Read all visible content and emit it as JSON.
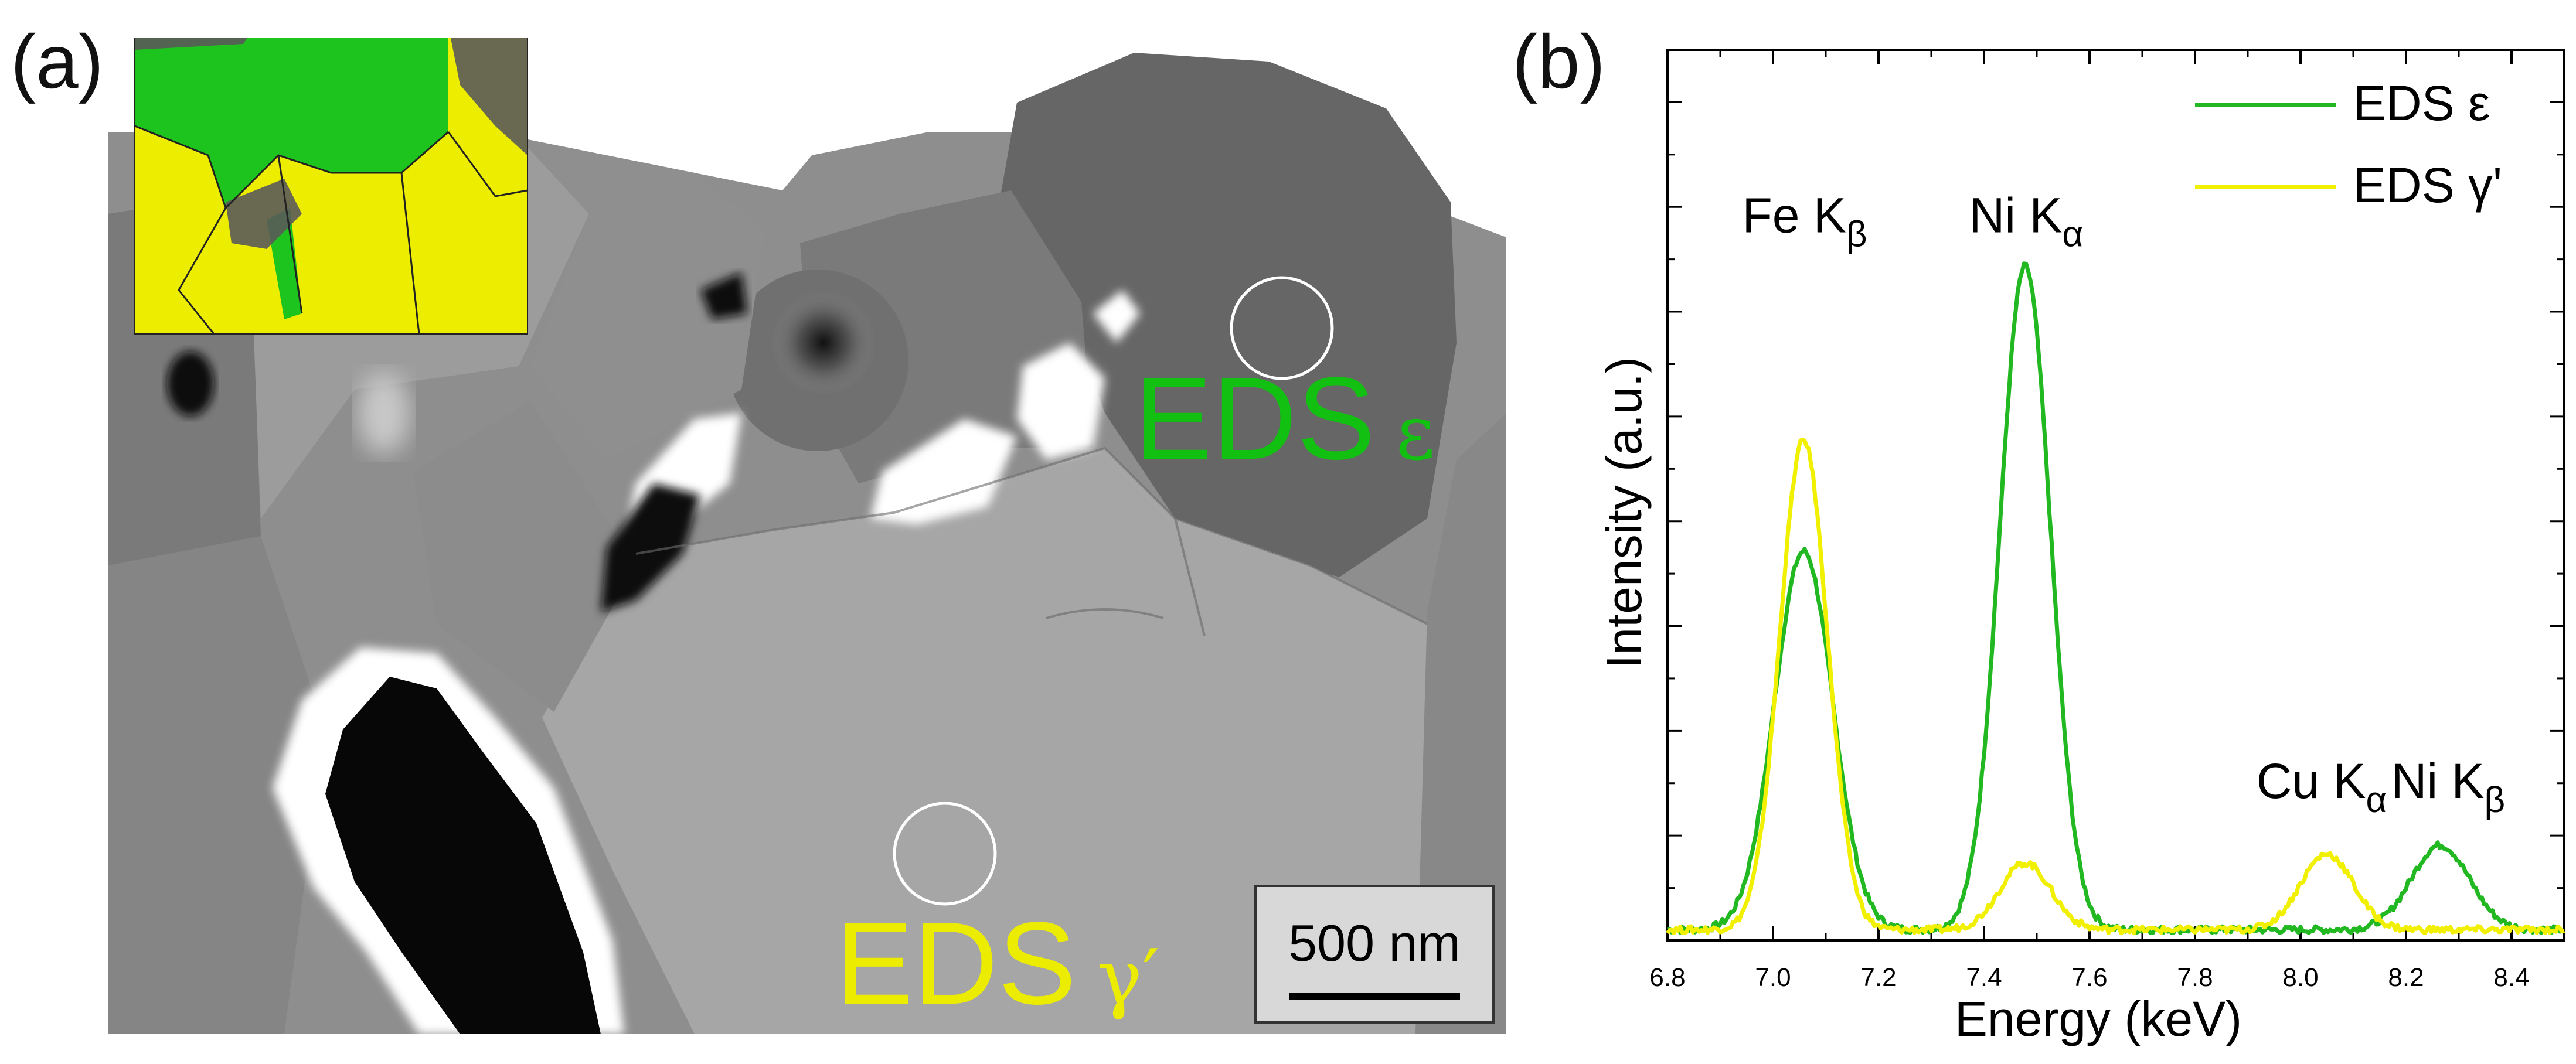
{
  "panel_a": {
    "label": "(a)",
    "annotation_eps": {
      "prefix": "EDS",
      "symbol": "ε",
      "color": "#11c011"
    },
    "annotation_gamma": {
      "prefix": "EDS",
      "symbol": "γ′",
      "color": "#ecec00"
    },
    "scale_bar": "500 nm",
    "inset_colors": {
      "eps": "#1dc41d",
      "gamma": "#eded00"
    }
  },
  "panel_b": {
    "label": "(b)",
    "chart_data": {
      "type": "line",
      "title": "",
      "xlabel": "Energy (keV)",
      "ylabel": "Intensity (a.u.)",
      "xlim": [
        6.8,
        8.5
      ],
      "ylim": [
        0,
        1.0
      ],
      "x_ticks": [
        "6.8",
        "7.0",
        "7.2",
        "7.4",
        "7.6",
        "7.8",
        "8.0",
        "8.2",
        "8.4"
      ],
      "x_tick_values": [
        6.8,
        7.0,
        7.2,
        7.4,
        7.6,
        7.8,
        8.0,
        8.2,
        8.4
      ],
      "legend_position": "top-right",
      "series": [
        {
          "name": "EDS ε",
          "color": "#22b822",
          "peaks": [
            {
              "center": 7.058,
              "height": 0.425,
              "sigma": 0.055
            },
            {
              "center": 7.478,
              "height": 0.745,
              "sigma": 0.048
            },
            {
              "center": 8.265,
              "height": 0.095,
              "sigma": 0.055
            }
          ],
          "baseline": 0.012
        },
        {
          "name": "EDS γ'",
          "color": "#f0f000",
          "peaks": [
            {
              "center": 7.058,
              "height": 0.55,
              "sigma": 0.045
            },
            {
              "center": 7.478,
              "height": 0.075,
              "sigma": 0.048
            },
            {
              "center": 8.05,
              "height": 0.085,
              "sigma": 0.05
            }
          ],
          "baseline": 0.012
        }
      ],
      "peak_labels": [
        {
          "main": "Fe K",
          "sub": "β",
          "x": 7.06,
          "y": 0.795
        },
        {
          "main": "Ni K",
          "sub": "α",
          "x": 7.48,
          "y": 0.795
        },
        {
          "main": "Cu K",
          "sub": "α",
          "x": 8.04,
          "y": 0.16
        },
        {
          "main": "Ni K",
          "sub": "β",
          "x": 8.28,
          "y": 0.16
        }
      ]
    }
  }
}
